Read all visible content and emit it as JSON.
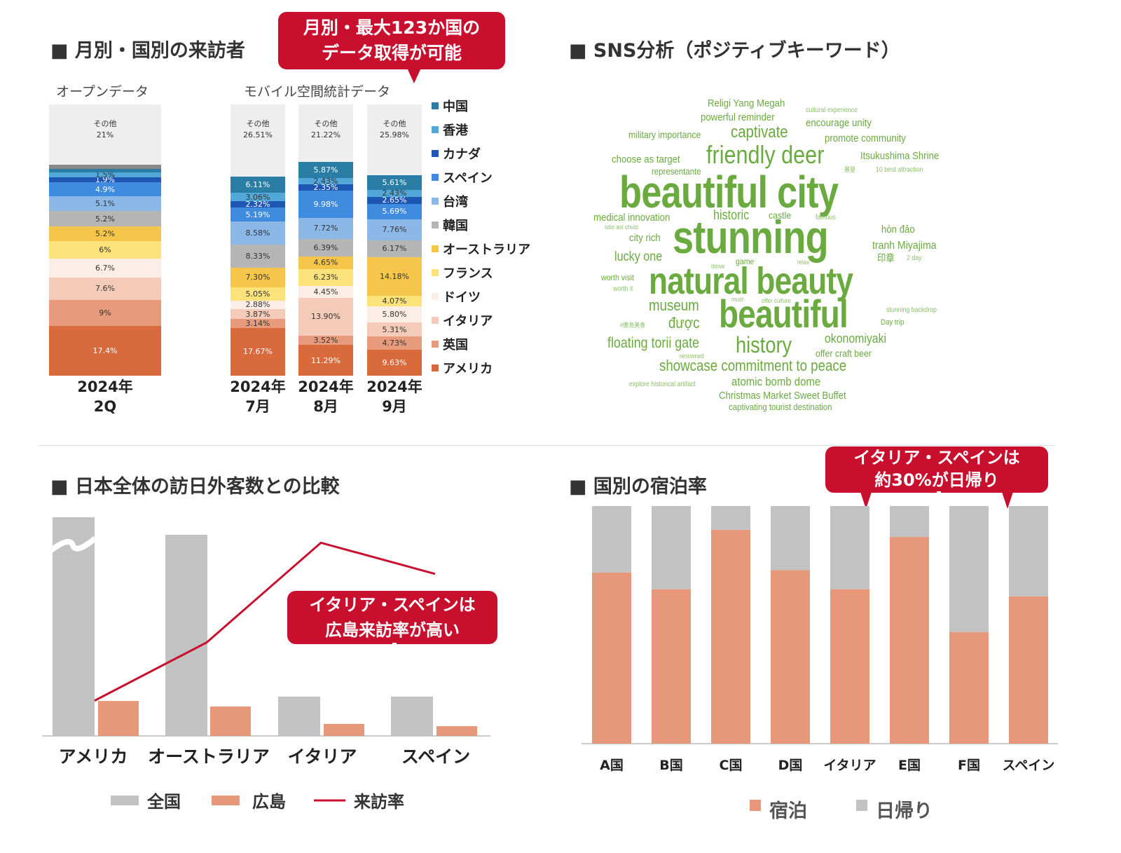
{
  "section1": {
    "title": "■ 月別・国別の来訪者",
    "callout": [
      "月別・最大123か国の",
      "データ取得が可能"
    ],
    "open_label": "オープンデータ",
    "mobile_label": "モバイル空間統計データ"
  },
  "section2": {
    "title": "■ SNS分析（ポジティブキーワード）"
  },
  "section3": {
    "title": "■ 日本全体の訪日外客数との比較",
    "callout": [
      "イタリア・スペインは",
      "広島来訪率が高い"
    ]
  },
  "section4": {
    "title": "■ 国別の宿泊率",
    "callout": [
      "イタリア・スペインは",
      "約30%が日帰り"
    ]
  },
  "colors": {
    "accent_red": "#c8102e",
    "word_green": "#6aaa3f",
    "gray": "#c2c2c2",
    "orange": "#e8987a"
  },
  "chart_data": [
    {
      "type": "bar",
      "stacked": true,
      "legend_position": "right",
      "legend": [
        "中国",
        "香港",
        "カナダ",
        "スペイン",
        "台湾",
        "韓国",
        "オーストラリア",
        "フランス",
        "ドイツ",
        "イタリア",
        "英国",
        "アメリカ"
      ],
      "legend_colors": [
        "#2a7ea5",
        "#52a8d8",
        "#1e56b3",
        "#3f8be0",
        "#8cb8e8",
        "#b5b5b5",
        "#f5c64a",
        "#fbe27b",
        "#fbeee6",
        "#f3cbb8",
        "#e89a7c",
        "#d96a3c"
      ],
      "periods": [
        {
          "label_lines": [
            "2024年",
            "2Q"
          ],
          "source": "オープンデータ",
          "segments": [
            {
              "name": "アメリカ",
              "value": 17.4,
              "label": "17.4%",
              "color": "#d96a3c"
            },
            {
              "name": "英国",
              "value": 9,
              "label": "9%",
              "color": "#e89a7c"
            },
            {
              "name": "イタリア",
              "value": 7.6,
              "label": "7.6%",
              "color": "#f3cbb8"
            },
            {
              "name": "ドイツ",
              "value": 6.7,
              "label": "6.7%",
              "color": "#fbeee6"
            },
            {
              "name": "フランス",
              "value": 6,
              "label": "6%",
              "color": "#fbe27b"
            },
            {
              "name": "オーストラリア",
              "value": 5.2,
              "label": "5.2%",
              "color": "#f5c64a"
            },
            {
              "name": "韓国",
              "value": 5.2,
              "label": "5.2%",
              "color": "#b5b5b5"
            },
            {
              "name": "台湾",
              "value": 5.1,
              "label": "5.1%",
              "color": "#8cb8e8"
            },
            {
              "name": "スペイン",
              "value": 4.9,
              "label": "4.9%",
              "color": "#3f8be0"
            },
            {
              "name": "カナダ",
              "value": 1.9,
              "label": "1.9%",
              "color": "#1e56b3"
            },
            {
              "name": "香港",
              "value": 1.5,
              "label": "1.5%",
              "color": "#52a8d8"
            },
            {
              "name": "中国",
              "value": 1.2,
              "label": "",
              "color": "#2a7ea5"
            },
            {
              "name": "",
              "value": 1.5,
              "label": "",
              "color": "#888888"
            },
            {
              "name": "その他",
              "value": 21,
              "label": "その他 21%",
              "color": "#eeeeee"
            }
          ]
        },
        {
          "label_lines": [
            "2024年",
            "7月"
          ],
          "source": "モバイル空間統計データ",
          "segments": [
            {
              "name": "アメリカ",
              "value": 17.67,
              "label": "17.67%",
              "color": "#d96a3c"
            },
            {
              "name": "英国",
              "value": 3.14,
              "label": "3.14%",
              "color": "#e89a7c"
            },
            {
              "name": "イタリア",
              "value": 3.87,
              "label": "3.87%",
              "color": "#f3cbb8"
            },
            {
              "name": "ドイツ",
              "value": 2.88,
              "label": "2.88%",
              "color": "#fbeee6"
            },
            {
              "name": "フランス",
              "value": 5.05,
              "label": "5.05%",
              "color": "#fbe27b"
            },
            {
              "name": "オーストラリア",
              "value": 7.3,
              "label": "7.30%",
              "color": "#f5c64a"
            },
            {
              "name": "韓国",
              "value": 8.33,
              "label": "8.33%",
              "color": "#b5b5b5"
            },
            {
              "name": "台湾",
              "value": 8.58,
              "label": "8.58%",
              "color": "#8cb8e8"
            },
            {
              "name": "スペイン",
              "value": 5.19,
              "label": "5.19%",
              "color": "#3f8be0"
            },
            {
              "name": "カナダ",
              "value": 2.32,
              "label": "2.32%",
              "color": "#1e56b3"
            },
            {
              "name": "香港",
              "value": 3.06,
              "label": "3.06%",
              "color": "#52a8d8"
            },
            {
              "name": "中国",
              "value": 6.11,
              "label": "6.11%",
              "color": "#2a7ea5"
            },
            {
              "name": "その他",
              "value": 26.51,
              "label": "その他 26.51%",
              "color": "#eeeeee"
            }
          ]
        },
        {
          "label_lines": [
            "2024年",
            "8月"
          ],
          "source": "モバイル空間統計データ",
          "segments": [
            {
              "name": "アメリカ",
              "value": 11.29,
              "label": "11.29%",
              "color": "#d96a3c"
            },
            {
              "name": "英国",
              "value": 3.52,
              "label": "3.52%",
              "color": "#e89a7c"
            },
            {
              "name": "イタリア",
              "value": 13.9,
              "label": "13.90%",
              "color": "#f3cbb8"
            },
            {
              "name": "ドイツ",
              "value": 4.45,
              "label": "4.45%",
              "color": "#fbeee6"
            },
            {
              "name": "フランス",
              "value": 6.23,
              "label": "6.23%",
              "color": "#fbe27b"
            },
            {
              "name": "オーストラリア",
              "value": 4.65,
              "label": "4.65%",
              "color": "#f5c64a"
            },
            {
              "name": "韓国",
              "value": 6.39,
              "label": "6.39%",
              "color": "#b5b5b5"
            },
            {
              "name": "台湾",
              "value": 7.72,
              "label": "7.72%",
              "color": "#8cb8e8"
            },
            {
              "name": "スペイン",
              "value": 9.98,
              "label": "9.98%",
              "color": "#3f8be0"
            },
            {
              "name": "カナダ",
              "value": 2.35,
              "label": "2.35%",
              "color": "#1e56b3"
            },
            {
              "name": "香港",
              "value": 2.43,
              "label": "2.43%",
              "color": "#52a8d8"
            },
            {
              "name": "中国",
              "value": 5.87,
              "label": "5.87%",
              "color": "#2a7ea5"
            },
            {
              "name": "その他",
              "value": 21.22,
              "label": "その他 21.22%",
              "color": "#eeeeee"
            }
          ]
        },
        {
          "label_lines": [
            "2024年",
            "9月"
          ],
          "source": "モバイル空間統計データ",
          "segments": [
            {
              "name": "アメリカ",
              "value": 9.63,
              "label": "9.63%",
              "color": "#d96a3c"
            },
            {
              "name": "英国",
              "value": 4.73,
              "label": "4.73%",
              "color": "#e89a7c"
            },
            {
              "name": "イタリア",
              "value": 5.31,
              "label": "5.31%",
              "color": "#f3cbb8"
            },
            {
              "name": "ドイツ",
              "value": 5.8,
              "label": "5.80%",
              "color": "#fbeee6"
            },
            {
              "name": "フランス",
              "value": 4.07,
              "label": "4.07%",
              "color": "#fbe27b"
            },
            {
              "name": "オーストラリア",
              "value": 14.18,
              "label": "14.18%",
              "color": "#f5c64a"
            },
            {
              "name": "韓国",
              "value": 6.17,
              "label": "6.17%",
              "color": "#b5b5b5"
            },
            {
              "name": "台湾",
              "value": 7.76,
              "label": "7.76%",
              "color": "#8cb8e8"
            },
            {
              "name": "スペイン",
              "value": 5.69,
              "label": "5.69%",
              "color": "#3f8be0"
            },
            {
              "name": "カナダ",
              "value": 2.65,
              "label": "2.65%",
              "color": "#1e56b3"
            },
            {
              "name": "香港",
              "value": 2.43,
              "label": "2.43%",
              "color": "#52a8d8"
            },
            {
              "name": "中国",
              "value": 5.61,
              "label": "5.61%",
              "color": "#2a7ea5"
            },
            {
              "name": "その他",
              "value": 25.98,
              "label": "その他 25.98%",
              "color": "#eeeeee"
            }
          ]
        }
      ]
    },
    {
      "type": "bar",
      "subtype": "bar+line",
      "categories": [
        "アメリカ",
        "オーストラリア",
        "イタリア",
        "スペイン"
      ],
      "series": [
        {
          "name": "全国",
          "kind": "bar",
          "color": "#c2c2c2",
          "values": [
            100,
            92,
            18,
            18
          ],
          "axis_break_first": true
        },
        {
          "name": "広島",
          "kind": "bar",
          "color": "#e8987a",
          "values": [
            16,
            13.5,
            5.5,
            4.5
          ]
        },
        {
          "name": "来訪率",
          "kind": "line",
          "color": "#c8102e",
          "values": [
            17,
            45,
            93,
            78
          ]
        }
      ],
      "ylim": [
        0,
        100
      ],
      "legend_position": "bottom"
    },
    {
      "type": "bar",
      "stacked": true,
      "categories": [
        "A国",
        "B国",
        "C国",
        "D国",
        "イタリア",
        "E国",
        "F国",
        "スペイン"
      ],
      "series": [
        {
          "name": "宿泊",
          "color": "#e8987a",
          "values": [
            72,
            65,
            90,
            73,
            65,
            87,
            47,
            62
          ]
        },
        {
          "name": "日帰り",
          "color": "#c2c2c2",
          "values": [
            28,
            35,
            10,
            27,
            35,
            13,
            53,
            38
          ]
        }
      ],
      "ylim": [
        0,
        100
      ],
      "legend_position": "bottom"
    }
  ],
  "wordcloud": {
    "type": "wordcloud",
    "words": [
      {
        "text": "Religi Yang Megah",
        "size": 15
      },
      {
        "text": "cultural experience",
        "size": 10
      },
      {
        "text": "powerful reminder",
        "size": 15
      },
      {
        "text": "encourage unity",
        "size": 15
      },
      {
        "text": "military importance",
        "size": 14
      },
      {
        "text": "captivate",
        "size": 24
      },
      {
        "text": "promote community",
        "size": 15
      },
      {
        "text": "choose as target",
        "size": 15
      },
      {
        "text": "friendly deer",
        "size": 36
      },
      {
        "text": "Itsukushima Shrine",
        "size": 15
      },
      {
        "text": "representante",
        "size": 13
      },
      {
        "text": "展望",
        "size": 9
      },
      {
        "text": "10 best attraction",
        "size": 10
      },
      {
        "text": "beautiful city",
        "size": 64
      },
      {
        "text": "medical innovation",
        "size": 15
      },
      {
        "text": "historic",
        "size": 19
      },
      {
        "text": "castle",
        "size": 14
      },
      {
        "text": "famous",
        "size": 10
      },
      {
        "text": "sitio así chulo",
        "size": 9
      },
      {
        "text": "stunning",
        "size": 66
      },
      {
        "text": "hòn đảo",
        "size": 15
      },
      {
        "text": "city rich",
        "size": 15
      },
      {
        "text": "tranh Miyajima",
        "size": 16
      },
      {
        "text": "lucky one",
        "size": 19
      },
      {
        "text": "game",
        "size": 12
      },
      {
        "text": "thrive",
        "size": 9
      },
      {
        "text": "relax",
        "size": 9
      },
      {
        "text": "印章",
        "size": 14
      },
      {
        "text": "2 day",
        "size": 10
      },
      {
        "text": "worth visit",
        "size": 12
      },
      {
        "text": "natural beauty",
        "size": 54
      },
      {
        "text": "worth it",
        "size": 10
      },
      {
        "text": "must",
        "size": 9
      },
      {
        "text": "offer culture",
        "size": 9
      },
      {
        "text": "museum",
        "size": 22
      },
      {
        "text": "beautiful",
        "size": 56
      },
      {
        "text": "stunning backdrop",
        "size": 10
      },
      {
        "text": "#廣島美食",
        "size": 9
      },
      {
        "text": "được",
        "size": 22
      },
      {
        "text": "Day trip",
        "size": 11
      },
      {
        "text": "floating torii gate",
        "size": 21
      },
      {
        "text": "history",
        "size": 32
      },
      {
        "text": "okonomiyaki",
        "size": 18
      },
      {
        "text": "renowned",
        "size": 9
      },
      {
        "text": "offer craft beer",
        "size": 14
      },
      {
        "text": "showcase commitment to peace",
        "size": 22
      },
      {
        "text": "explore historical artifact",
        "size": 10
      },
      {
        "text": "atomic bomb dome",
        "size": 17
      },
      {
        "text": "Christmas Market Sweet Buffet",
        "size": 15
      },
      {
        "text": "captivating tourist destination",
        "size": 13
      }
    ]
  }
}
